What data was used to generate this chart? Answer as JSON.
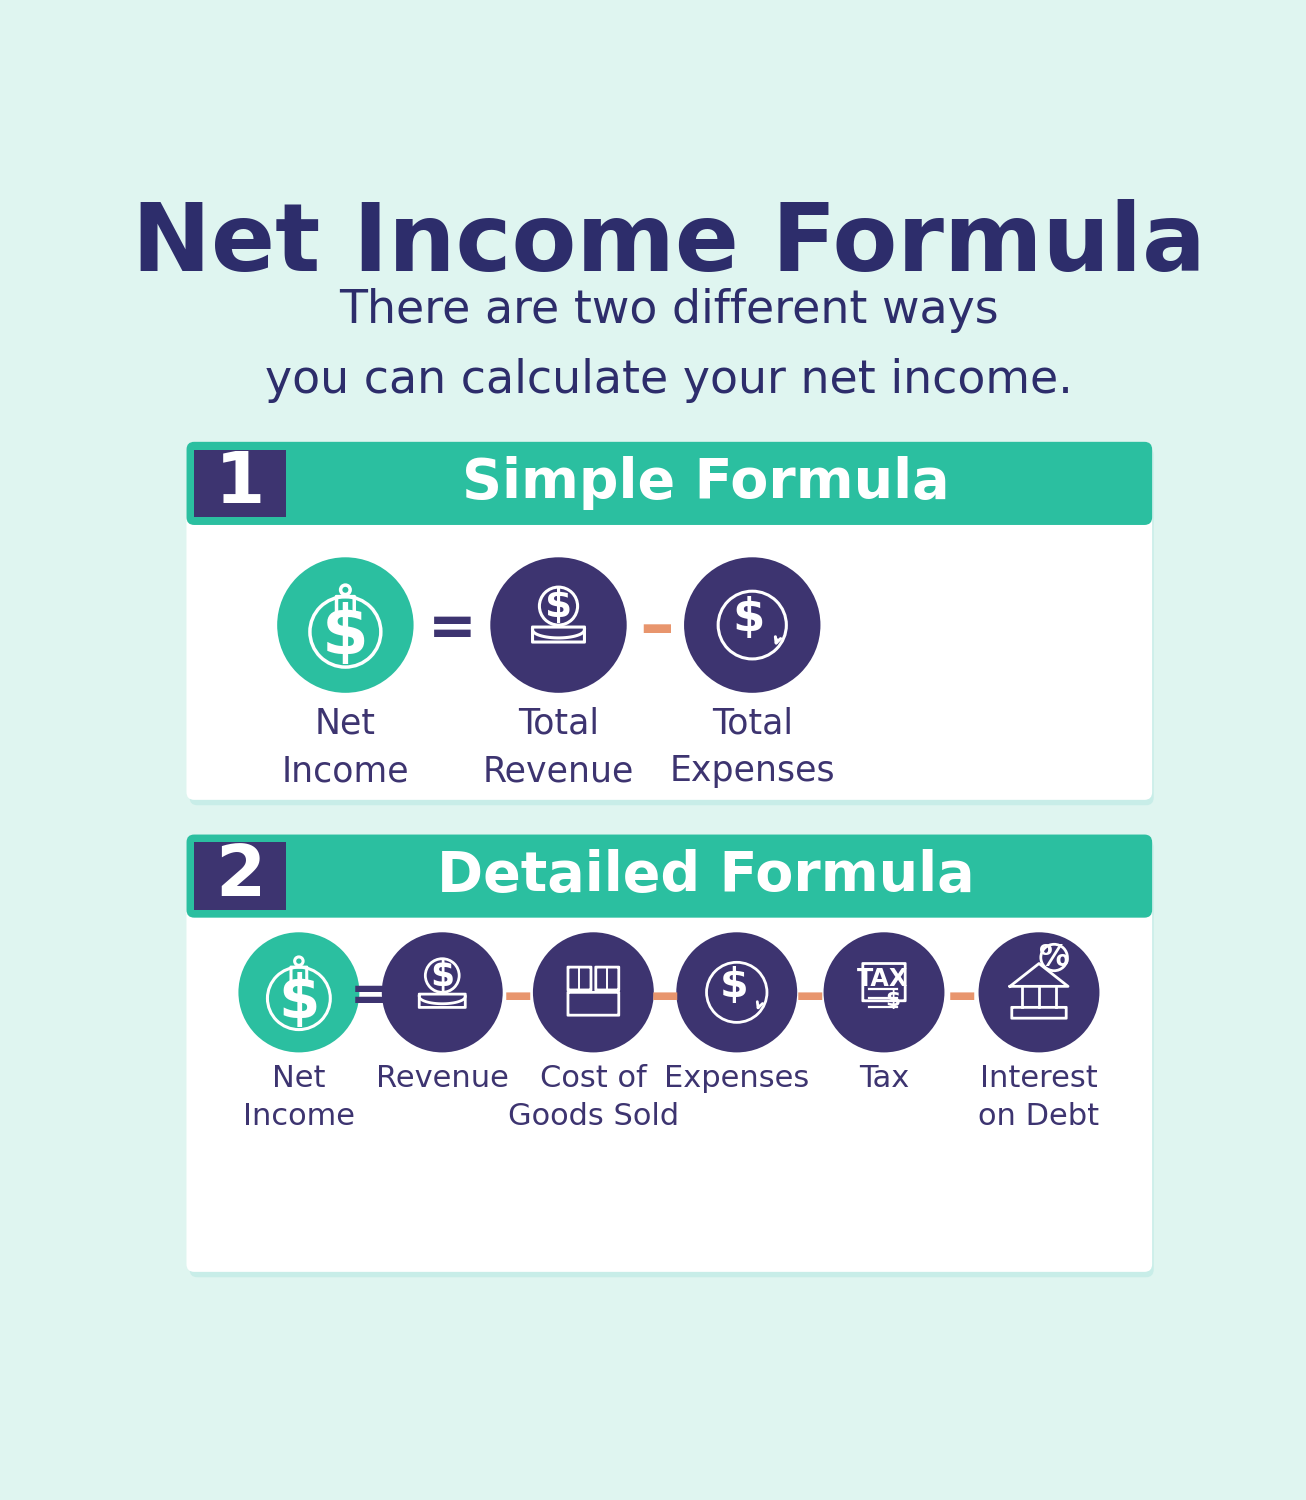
{
  "title": "Net Income Formula",
  "subtitle": "There are two different ways\nyou can calculate your net income.",
  "bg_color": "#dff5f0",
  "title_color": "#2d2d6b",
  "subtitle_color": "#2d2d6b",
  "teal_color": "#2bbfa0",
  "purple_dark": "#3d3470",
  "orange_color": "#e8956d",
  "white": "#ffffff",
  "section1_title": "Simple Formula",
  "section2_title": "Detailed Formula",
  "section1_labels": [
    "Net\nIncome",
    "Total\nRevenue",
    "Total\nExpenses"
  ],
  "section2_labels": [
    "Net\nIncome",
    "Revenue",
    "Cost of\nGoods Sold",
    "Expenses",
    "Tax",
    "Interest\non Debt"
  ],
  "text_color": "#3d3470",
  "card_shadow": "#c8ede8"
}
